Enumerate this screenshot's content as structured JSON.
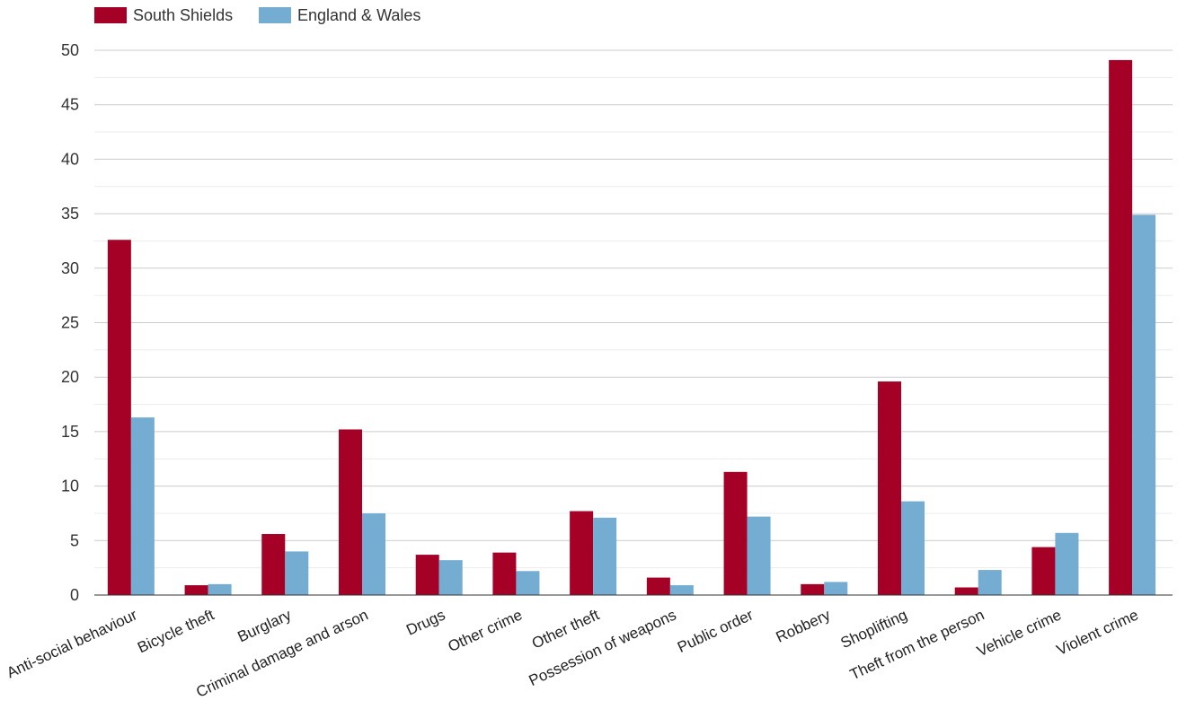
{
  "chart_data": {
    "type": "bar",
    "categories": [
      "Anti-social behaviour",
      "Bicycle theft",
      "Burglary",
      "Criminal damage and arson",
      "Drugs",
      "Other crime",
      "Other theft",
      "Possession of weapons",
      "Public order",
      "Robbery",
      "Shoplifting",
      "Theft from the person",
      "Vehicle crime",
      "Violent crime"
    ],
    "series": [
      {
        "name": "South Shields",
        "color": "#a50026",
        "values": [
          32.6,
          0.9,
          5.6,
          15.2,
          3.7,
          3.9,
          7.7,
          1.6,
          11.3,
          1.0,
          19.6,
          0.7,
          4.4,
          49.1
        ]
      },
      {
        "name": "England & Wales",
        "color": "#74add1",
        "values": [
          16.3,
          1.0,
          4.0,
          7.5,
          3.2,
          2.2,
          7.1,
          0.9,
          7.2,
          1.2,
          8.6,
          2.3,
          5.7,
          34.9
        ]
      }
    ],
    "ylim": [
      0,
      50
    ],
    "yticks": [
      0,
      5,
      10,
      15,
      20,
      25,
      30,
      35,
      40,
      45,
      50
    ],
    "grid": true,
    "legend_position": "top-left"
  }
}
